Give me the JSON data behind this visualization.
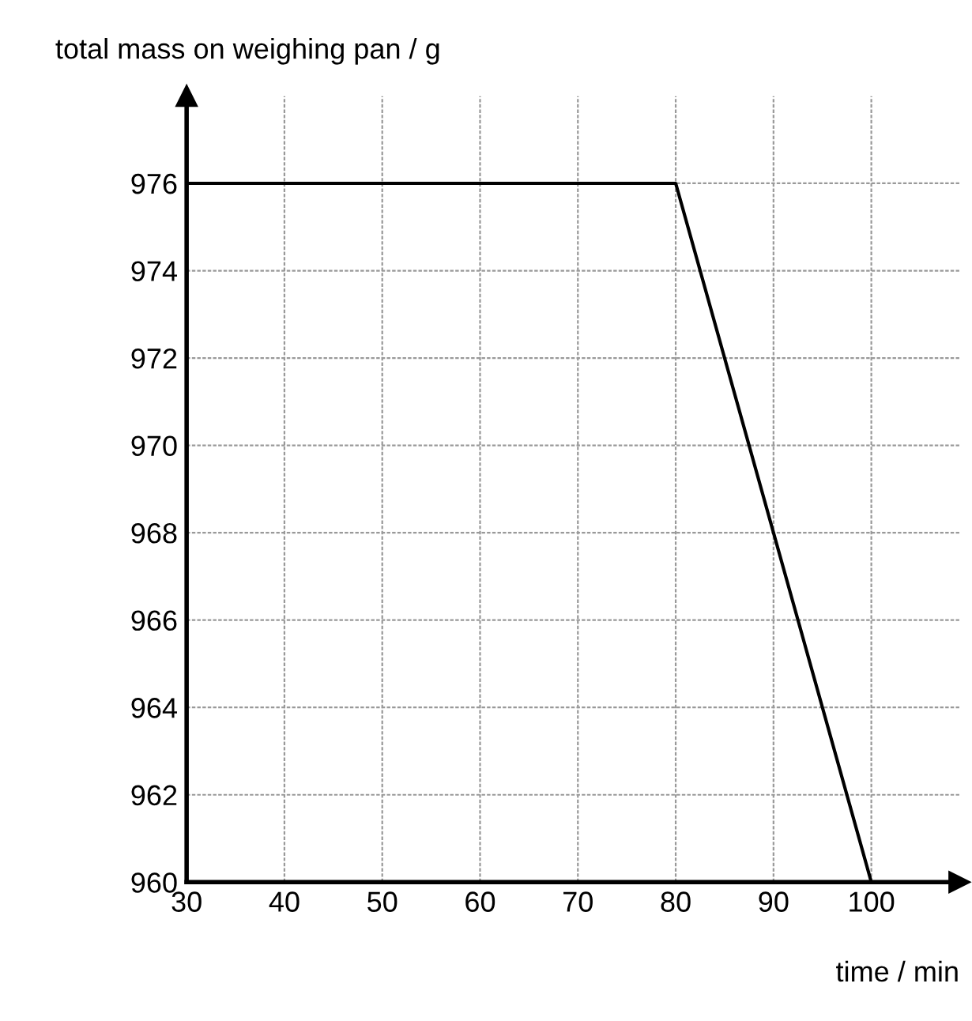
{
  "chart_data": {
    "type": "line",
    "xlabel": "time / min",
    "ylabel": "total mass on weighing pan / g",
    "x": [
      30,
      80,
      100
    ],
    "series": [
      {
        "color": "#000000",
        "values": [
          976,
          976,
          960
        ]
      }
    ],
    "xlim": [
      30,
      109
    ],
    "xticks": [
      30,
      40,
      50,
      60,
      70,
      80,
      90,
      100
    ],
    "ylim": [
      960,
      978
    ],
    "yticks": [
      960,
      962,
      964,
      966,
      968,
      970,
      972,
      974,
      976
    ],
    "grid": true,
    "marker": "none",
    "line_style": "solid"
  }
}
